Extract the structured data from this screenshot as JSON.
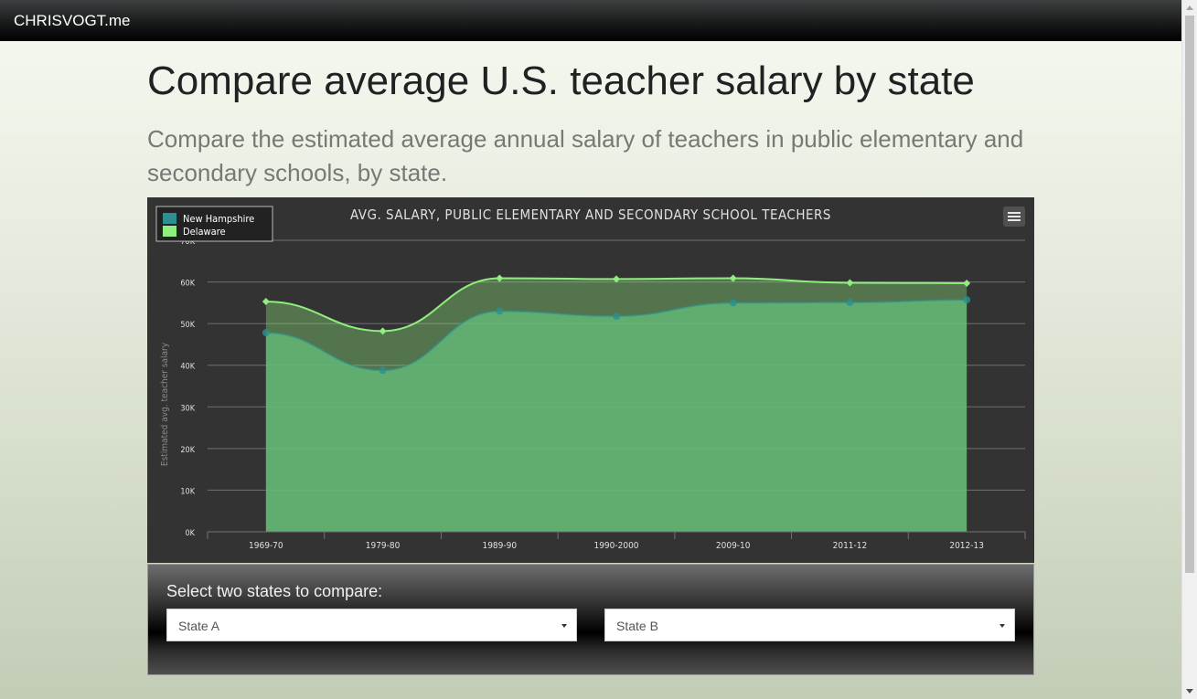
{
  "navbar": {
    "brand": "CHRISVOGT.me"
  },
  "page": {
    "title": "Compare average U.S. teacher salary by state",
    "subtitle": "Compare the estimated average annual salary of teachers in public elementary and secondary schools, by state."
  },
  "chart_data": {
    "type": "area",
    "title": "AVG. SALARY, PUBLIC ELEMENTARY AND SECONDARY SCHOOL TEACHERS",
    "xlabel": "",
    "ylabel": "Estimated avg. teacher salary",
    "categories": [
      "1969-70",
      "1979-80",
      "1989-90",
      "1990-2000",
      "2009-10",
      "2011-12",
      "2012-13"
    ],
    "yticks": [
      "0K",
      "10K",
      "20K",
      "30K",
      "40K",
      "50K",
      "60K",
      "70K"
    ],
    "ylim": [
      0,
      70000
    ],
    "grid": true,
    "legend_position": "top-left",
    "series": [
      {
        "name": "New Hampshire",
        "color": "#2b908f",
        "values": [
          47800,
          38800,
          53000,
          51800,
          55000,
          55100,
          55700
        ]
      },
      {
        "name": "Delaware",
        "color": "#90ee7e",
        "values": [
          55300,
          48200,
          60900,
          60700,
          60900,
          59800,
          59700
        ]
      }
    ]
  },
  "selector": {
    "label": "Select two states to compare:",
    "state_a": "State A",
    "state_b": "State B"
  },
  "colors": {
    "chart_background": "#333333",
    "series_a": "#2b908f",
    "series_b": "#90ee7e"
  }
}
